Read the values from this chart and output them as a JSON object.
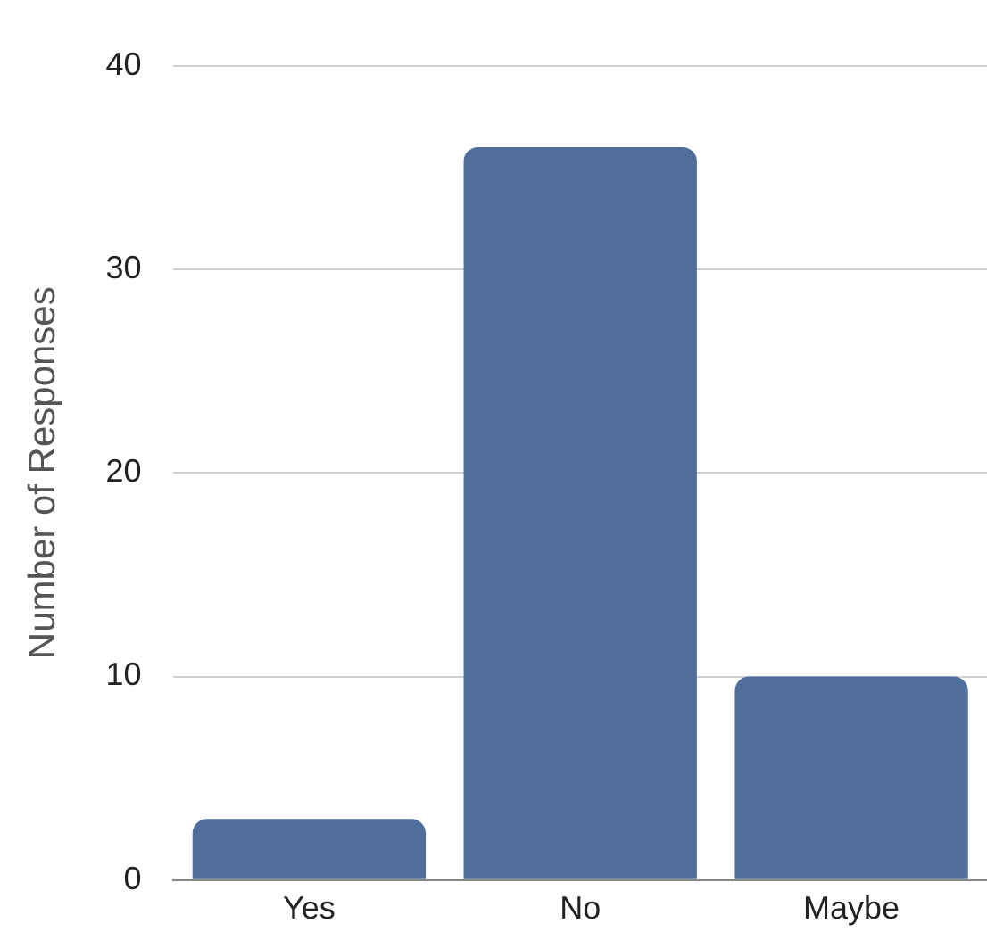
{
  "chart_data": {
    "type": "bar",
    "ylabel": "Number of Responses",
    "categories": [
      "Yes",
      "No",
      "Maybe"
    ],
    "values": [
      3,
      36,
      10
    ],
    "color": "#4f6e9c",
    "ylim": [
      0,
      40
    ],
    "yticks": [
      0,
      10,
      20,
      30,
      40
    ],
    "grid": "y"
  }
}
